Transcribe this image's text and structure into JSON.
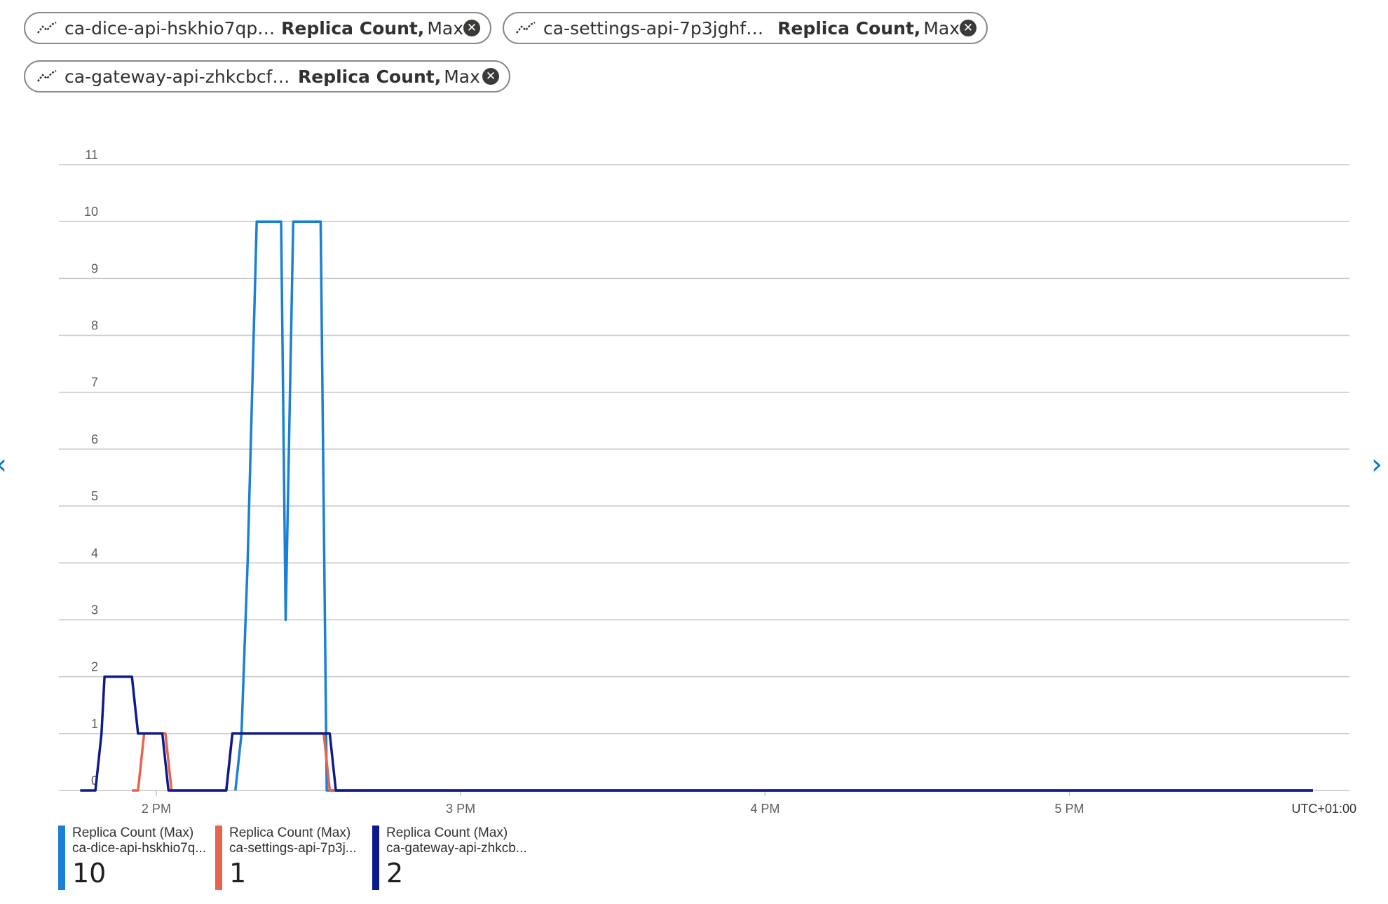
{
  "pills": [
    {
      "resource": "ca-dice-api-hskhio7qputac,",
      "metric": "Replica Count,",
      "agg": "Max"
    },
    {
      "resource": "ca-settings-api-7p3jghfaaa...",
      "metric": "Replica Count,",
      "agg": "Max"
    },
    {
      "resource": "ca-gateway-api-zhkcbcf3o...",
      "metric": "Replica Count,",
      "agg": "Max"
    }
  ],
  "nav": {
    "prev": "‹",
    "next": "›"
  },
  "colors": {
    "dice": "#1a7fd6",
    "settings": "#e8634f",
    "gateway": "#0d1a8c",
    "grid": "#c8c6c4"
  },
  "legend": [
    {
      "metric": "Replica Count (Max)",
      "resource": "ca-dice-api-hskhio7q...",
      "value": "10"
    },
    {
      "metric": "Replica Count (Max)",
      "resource": "ca-settings-api-7p3j...",
      "value": "1"
    },
    {
      "metric": "Replica Count (Max)",
      "resource": "ca-gateway-api-zhkcb...",
      "value": "2"
    }
  ],
  "chart_data": {
    "type": "line",
    "ylim": [
      0,
      11
    ],
    "yticks": [
      0,
      1,
      2,
      3,
      4,
      5,
      6,
      7,
      8,
      9,
      10,
      11
    ],
    "xlim": [
      13.68,
      17.92
    ],
    "xticks": [
      {
        "value": 14,
        "label": "2 PM"
      },
      {
        "value": 15,
        "label": "3 PM"
      },
      {
        "value": 16,
        "label": "4 PM"
      },
      {
        "value": 17,
        "label": "5 PM"
      }
    ],
    "timezone": "UTC+01:00",
    "grid": true,
    "series": [
      {
        "name": "ca-dice-api-hskhio7qputac",
        "color": "#1a7fd6",
        "x": [
          14.26,
          14.28,
          14.3,
          14.33,
          14.41,
          14.425,
          14.45,
          14.54,
          14.56,
          17.8
        ],
        "y": [
          0,
          1,
          4,
          10,
          10,
          3,
          10,
          10,
          0,
          0
        ]
      },
      {
        "name": "ca-settings-api-7p3jghfaaa",
        "color": "#e8634f",
        "x": [
          13.92,
          13.94,
          13.96,
          13.99,
          14.03,
          14.05,
          14.07,
          14.13,
          14.23,
          14.25,
          14.27,
          14.55,
          14.57,
          14.59,
          17.8
        ],
        "y": [
          0,
          0,
          1,
          1,
          1,
          0,
          0,
          0,
          0,
          1,
          1,
          1,
          0,
          0,
          0
        ]
      },
      {
        "name": "ca-gateway-api-zhkcbcf3o",
        "color": "#0d1a8c",
        "x": [
          13.75,
          13.8,
          13.82,
          13.83,
          13.92,
          13.94,
          14.02,
          14.04,
          14.06,
          14.23,
          14.25,
          14.57,
          14.59,
          17.8
        ],
        "y": [
          0,
          0,
          1,
          2,
          2,
          1,
          1,
          0,
          0,
          0,
          1,
          1,
          0,
          0
        ]
      }
    ]
  }
}
